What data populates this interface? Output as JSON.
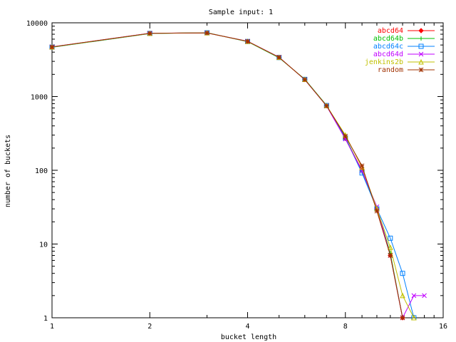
{
  "chart_data": {
    "type": "line",
    "title": "Sample input: 1",
    "xlabel": "bucket length",
    "ylabel": "number of buckets",
    "xscale": "log2",
    "yscale": "log10",
    "xlim": [
      1,
      16
    ],
    "ylim": [
      1,
      10000
    ],
    "xticks": [
      "1",
      "2",
      "4",
      "8",
      "16"
    ],
    "yticks": [
      "1",
      "10",
      "100",
      "1000",
      "10000"
    ],
    "grid": false,
    "legend_position": "top-right",
    "series": [
      {
        "name": "abcd64",
        "color": "#ff0000",
        "marker": "diamond",
        "points": [
          [
            1,
            4700
          ],
          [
            2,
            7200
          ],
          [
            3,
            7300
          ],
          [
            4,
            5600
          ],
          [
            5,
            3400
          ],
          [
            6,
            1700
          ],
          [
            7,
            750
          ],
          [
            8,
            270
          ],
          [
            9,
            100
          ],
          [
            10,
            30
          ],
          [
            11,
            7
          ],
          [
            12,
            1
          ]
        ]
      },
      {
        "name": "abcd64b",
        "color": "#00c000",
        "marker": "plus",
        "points": [
          [
            1,
            4650
          ],
          [
            2,
            7150
          ],
          [
            3,
            7350
          ],
          [
            4,
            5550
          ],
          [
            5,
            3350
          ],
          [
            6,
            1720
          ],
          [
            7,
            760
          ],
          [
            8,
            280
          ],
          [
            9,
            95
          ],
          [
            10,
            31
          ],
          [
            11,
            7.5
          ],
          [
            12,
            1
          ]
        ]
      },
      {
        "name": "abcd64c",
        "color": "#0080ff",
        "marker": "square",
        "points": [
          [
            1,
            4680
          ],
          [
            2,
            7180
          ],
          [
            3,
            7320
          ],
          [
            4,
            5580
          ],
          [
            5,
            3380
          ],
          [
            6,
            1710
          ],
          [
            7,
            755
          ],
          [
            8,
            275
          ],
          [
            9,
            92
          ],
          [
            10,
            30
          ],
          [
            11,
            12
          ],
          [
            12,
            4
          ],
          [
            13,
            1
          ]
        ]
      },
      {
        "name": "abcd64d",
        "color": "#c000ff",
        "marker": "x",
        "points": [
          [
            1,
            4720
          ],
          [
            2,
            7220
          ],
          [
            3,
            7280
          ],
          [
            4,
            5620
          ],
          [
            5,
            3420
          ],
          [
            6,
            1690
          ],
          [
            7,
            745
          ],
          [
            8,
            265
          ],
          [
            9,
            98
          ],
          [
            10,
            32
          ],
          [
            11,
            7
          ],
          [
            12,
            1
          ],
          [
            13,
            2
          ],
          [
            14,
            2
          ]
        ]
      },
      {
        "name": "jenkins2b",
        "color": "#c0c000",
        "marker": "triangle",
        "points": [
          [
            1,
            4690
          ],
          [
            2,
            7190
          ],
          [
            3,
            7310
          ],
          [
            4,
            5590
          ],
          [
            5,
            3390
          ],
          [
            6,
            1705
          ],
          [
            7,
            752
          ],
          [
            8,
            300
          ],
          [
            9,
            110
          ],
          [
            10,
            30
          ],
          [
            11,
            9
          ],
          [
            12,
            2
          ],
          [
            13,
            1
          ]
        ]
      },
      {
        "name": "random",
        "color": "#a03000",
        "marker": "star",
        "points": [
          [
            1,
            4710
          ],
          [
            2,
            7210
          ],
          [
            3,
            7290
          ],
          [
            4,
            5610
          ],
          [
            5,
            3410
          ],
          [
            6,
            1695
          ],
          [
            7,
            748
          ],
          [
            8,
            290
          ],
          [
            9,
            115
          ],
          [
            10,
            28
          ],
          [
            11,
            7
          ],
          [
            12,
            1
          ]
        ]
      }
    ]
  }
}
